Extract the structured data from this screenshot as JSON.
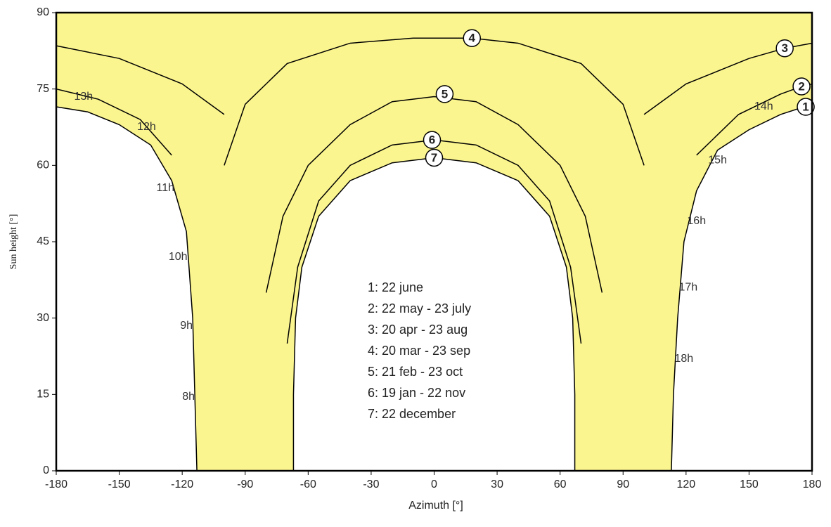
{
  "chart_data": {
    "type": "sunpath",
    "x_label": "Azimuth [°]",
    "y_label": "Sun height [°]",
    "xlim": [
      -180,
      180
    ],
    "ylim": [
      0,
      90
    ],
    "xticks": [
      -180,
      -150,
      -120,
      -90,
      -60,
      -30,
      0,
      30,
      60,
      90,
      120,
      150,
      180
    ],
    "yticks": [
      0,
      15,
      30,
      45,
      60,
      75,
      90
    ],
    "fill_color": "#fbf58f",
    "series": [
      {
        "name": "1: 22 june",
        "color": "#000000",
        "x": [
          -180,
          -165,
          -150,
          -135,
          -125,
          -118,
          -115,
          -114,
          -113,
          null,
          113,
          114,
          116,
          119,
          125,
          135,
          150,
          165,
          180
        ],
        "y": [
          71.5,
          70.5,
          68,
          64,
          57,
          47,
          30,
          15,
          0,
          null,
          0,
          15,
          30,
          45,
          55,
          63,
          67,
          70,
          72
        ]
      },
      {
        "name": "2: 22 may - 23 july",
        "color": "#000000",
        "x": [
          -180,
          -160,
          -140,
          -125,
          null,
          125,
          145,
          165,
          175,
          180
        ],
        "y": [
          75,
          73,
          69,
          62,
          null,
          62,
          70,
          74,
          75.5,
          76
        ]
      },
      {
        "name": "3: 20 apr - 23 aug",
        "color": "#000000",
        "x": [
          -180,
          -150,
          -120,
          -100,
          null,
          100,
          120,
          150,
          167,
          180
        ],
        "y": [
          83.5,
          81,
          76,
          70,
          null,
          70,
          76,
          81,
          83,
          84
        ]
      },
      {
        "name": "4: 20 mar - 23 sep",
        "color": "#000000",
        "x": [
          -100,
          -90,
          -70,
          -40,
          -10,
          18,
          40,
          70,
          90,
          100
        ],
        "y": [
          60,
          72,
          80,
          84,
          85,
          85,
          84,
          80,
          72,
          60
        ]
      },
      {
        "name": "5: 21 feb - 23 oct",
        "color": "#000000",
        "x": [
          -80,
          -72,
          -60,
          -40,
          -20,
          0,
          20,
          40,
          60,
          72,
          80
        ],
        "y": [
          35,
          50,
          60,
          68,
          72.5,
          73.5,
          72.5,
          68,
          60,
          50,
          35
        ]
      },
      {
        "name": "6: 19 jan - 22 nov",
        "color": "#000000",
        "x": [
          -70,
          -65,
          -55,
          -40,
          -20,
          0,
          20,
          40,
          55,
          65,
          70
        ],
        "y": [
          25,
          40,
          53,
          60,
          64,
          65,
          64,
          60,
          53,
          40,
          25
        ]
      },
      {
        "name": "7: 22 december",
        "color": "#000000",
        "x": [
          -67,
          -67,
          -66,
          -63,
          -55,
          -40,
          -20,
          0,
          20,
          40,
          55,
          63,
          66,
          67,
          67
        ],
        "y": [
          0,
          15,
          30,
          40,
          50,
          57,
          60.5,
          61.5,
          60.5,
          57,
          50,
          40,
          30,
          15,
          0
        ]
      }
    ],
    "markers": [
      {
        "label": "1",
        "x": 177,
        "y": 71.5
      },
      {
        "label": "2",
        "x": 175,
        "y": 75.5
      },
      {
        "label": "3",
        "x": 167,
        "y": 83
      },
      {
        "label": "4",
        "x": 18,
        "y": 85
      },
      {
        "label": "5",
        "x": 5,
        "y": 74
      },
      {
        "label": "6",
        "x": -1,
        "y": 65
      },
      {
        "label": "7",
        "x": 0,
        "y": 61.5
      }
    ],
    "hour_labels": [
      {
        "label": "13h",
        "x": -167,
        "y": 73.5
      },
      {
        "label": "12h",
        "x": -137,
        "y": 67.5
      },
      {
        "label": "11h",
        "x": -128,
        "y": 55.5
      },
      {
        "label": "10h",
        "x": -122,
        "y": 42
      },
      {
        "label": "9h",
        "x": -118,
        "y": 28.5
      },
      {
        "label": "8h",
        "x": -117,
        "y": 14.5
      },
      {
        "label": "14h",
        "x": 157,
        "y": 71.5
      },
      {
        "label": "15h",
        "x": 135,
        "y": 61
      },
      {
        "label": "16h",
        "x": 125,
        "y": 49
      },
      {
        "label": "17h",
        "x": 121,
        "y": 36
      },
      {
        "label": "18h",
        "x": 119,
        "y": 22
      }
    ]
  }
}
